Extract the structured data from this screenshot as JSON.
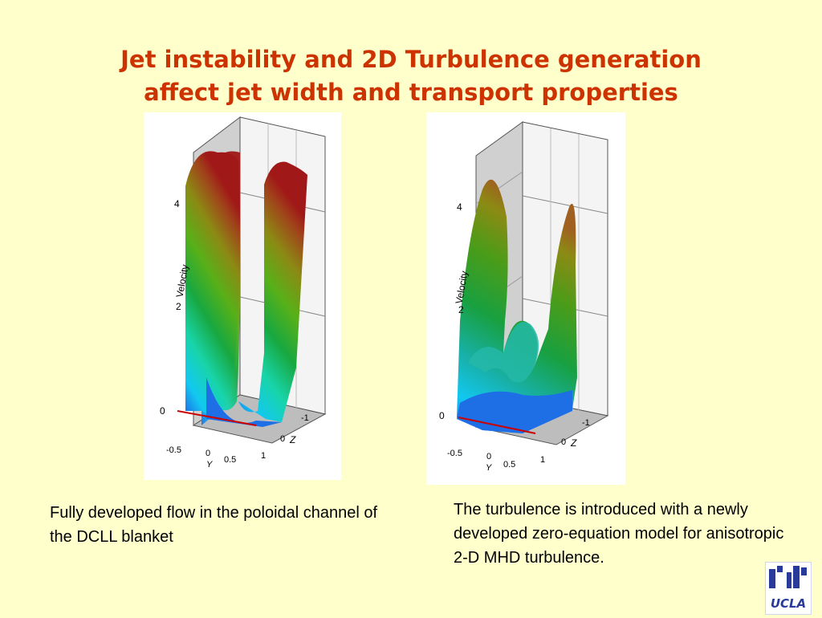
{
  "title": {
    "line1": "Jet instability and 2D Turbulence generation",
    "line2": "affect jet width and transport properties"
  },
  "plot_left": {
    "axis_label_velocity": "Velocity",
    "axis_label_y": "Y",
    "axis_label_z": "Z",
    "velocity_ticks": [
      "0",
      "2",
      "4"
    ],
    "y_ticks": [
      "-0.5",
      "0",
      "0.5",
      "1"
    ],
    "z_ticks": [
      "-1",
      "0"
    ]
  },
  "plot_right": {
    "axis_label_velocity": "Velocity",
    "axis_label_y": "Y",
    "axis_label_z": "Z",
    "velocity_ticks": [
      "0",
      "2",
      "4"
    ],
    "y_ticks": [
      "-0.5",
      "0",
      "0.5",
      "1"
    ],
    "z_ticks": [
      "-1",
      "0"
    ]
  },
  "captions": {
    "left": "Fully developed flow in the poloidal channel of the DCLL blanket",
    "right": "The turbulence is introduced with a newly developed zero-equation model for anisotropic 2-D MHD turbulence."
  },
  "logo": {
    "text": "UCLA"
  },
  "colors": {
    "background": "#ffffcc",
    "title": "#cc3300",
    "axis_red": "#cc0000"
  }
}
